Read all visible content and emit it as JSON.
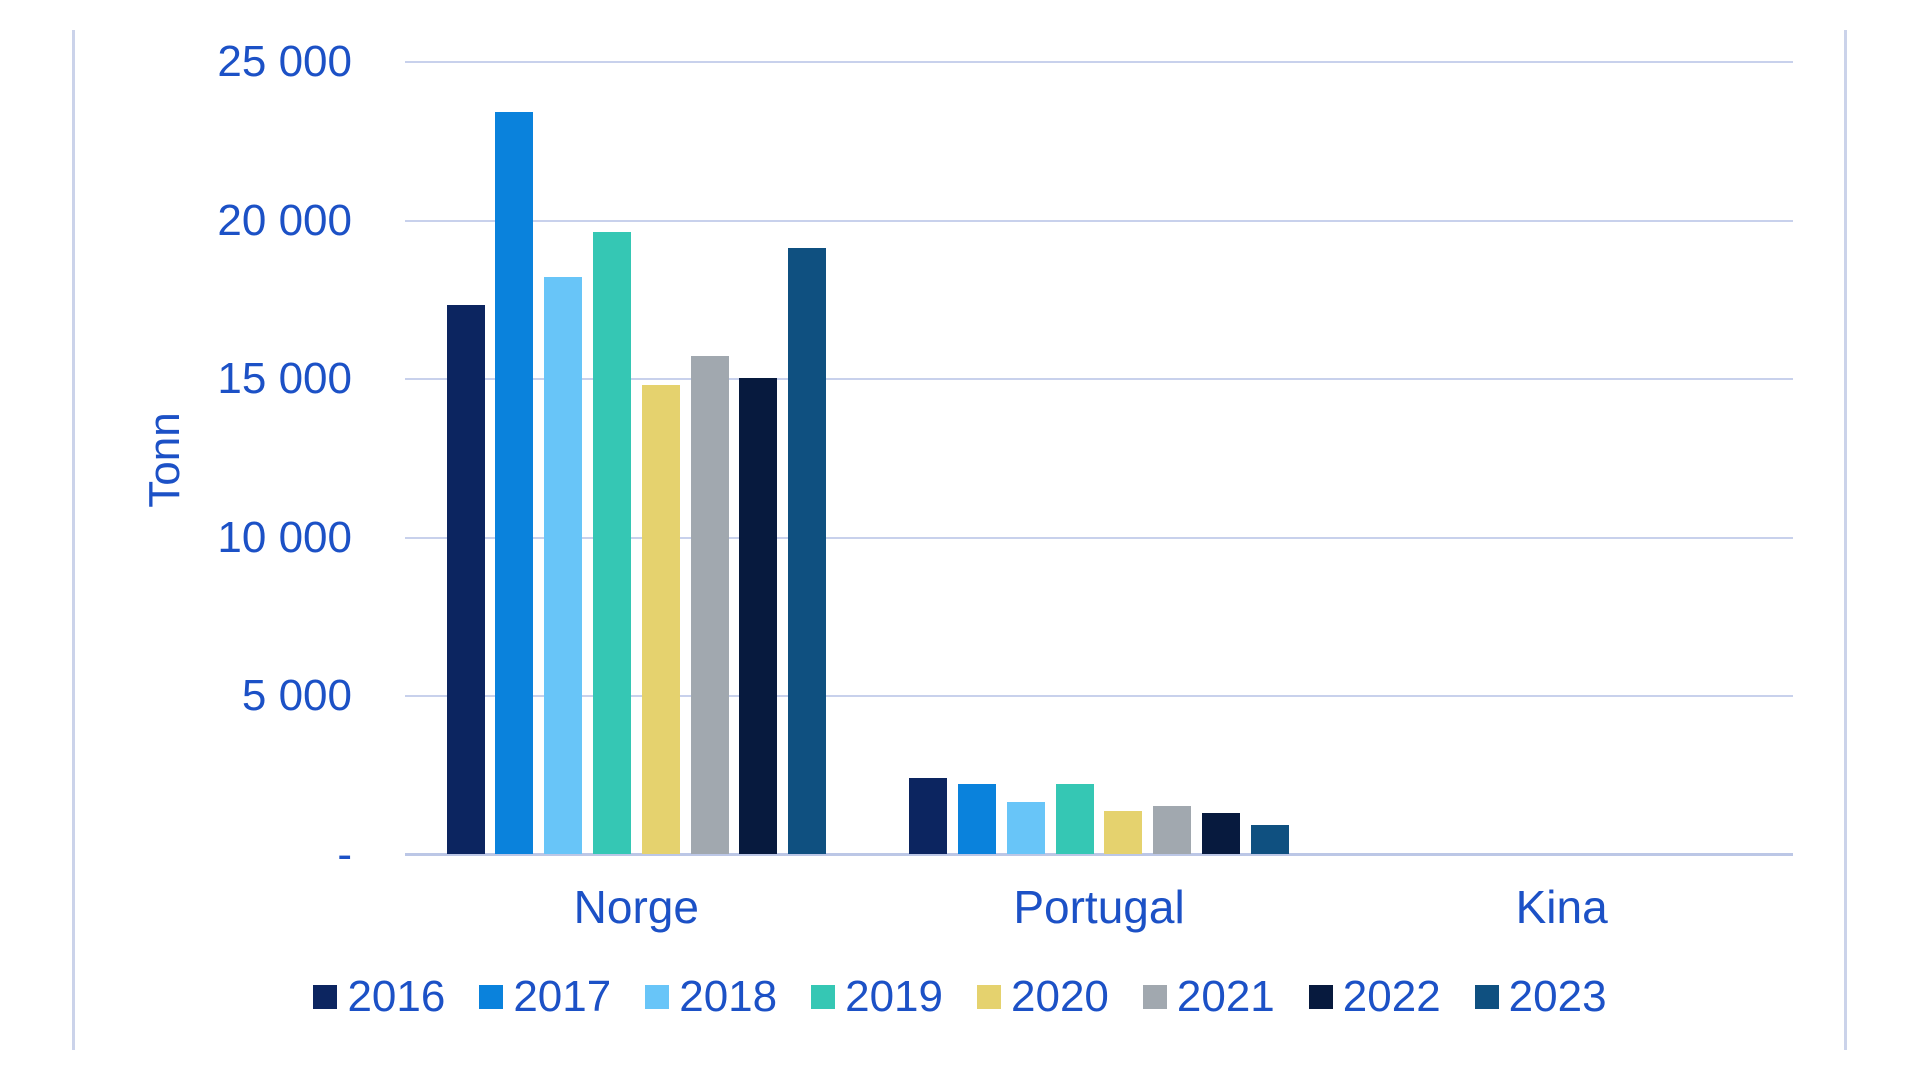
{
  "chart_data": {
    "type": "bar",
    "title": "",
    "xlabel": "",
    "ylabel": "Tonn",
    "categories": [
      "Norge",
      "Portugal",
      "Kina"
    ],
    "series": [
      {
        "name": "2016",
        "color": "#0C2560",
        "values": [
          17300,
          2400,
          0
        ]
      },
      {
        "name": "2017",
        "color": "#0A82DC",
        "values": [
          23400,
          2200,
          0
        ]
      },
      {
        "name": "2018",
        "color": "#68C5F8",
        "values": [
          18200,
          1650,
          0
        ]
      },
      {
        "name": "2019",
        "color": "#35C7B4",
        "values": [
          19600,
          2200,
          0
        ]
      },
      {
        "name": "2020",
        "color": "#E5D26E",
        "values": [
          14800,
          1350,
          0
        ]
      },
      {
        "name": "2021",
        "color": "#A1A8AF",
        "values": [
          15700,
          1500,
          0
        ]
      },
      {
        "name": "2022",
        "color": "#071A3E",
        "values": [
          15000,
          1300,
          0
        ]
      },
      {
        "name": "2023",
        "color": "#0F5080",
        "values": [
          19100,
          900,
          0
        ]
      }
    ],
    "y_axis": {
      "min": 0,
      "max": 25000,
      "step": 5000,
      "ticks": [
        {
          "label": "-",
          "value": 0
        },
        {
          "label": "5 000",
          "value": 5000
        },
        {
          "label": "10 000",
          "value": 10000
        },
        {
          "label": "15 000",
          "value": 15000
        },
        {
          "label": "20 000",
          "value": 20000
        },
        {
          "label": "25 000",
          "value": 25000
        }
      ]
    },
    "grid": true,
    "legend_position": "bottom"
  },
  "colors": {
    "text": "#1C51C6",
    "gridline": "#C8D1EC",
    "axis_line": "#BCC7E6",
    "frame_border": "#CBD3EA"
  }
}
